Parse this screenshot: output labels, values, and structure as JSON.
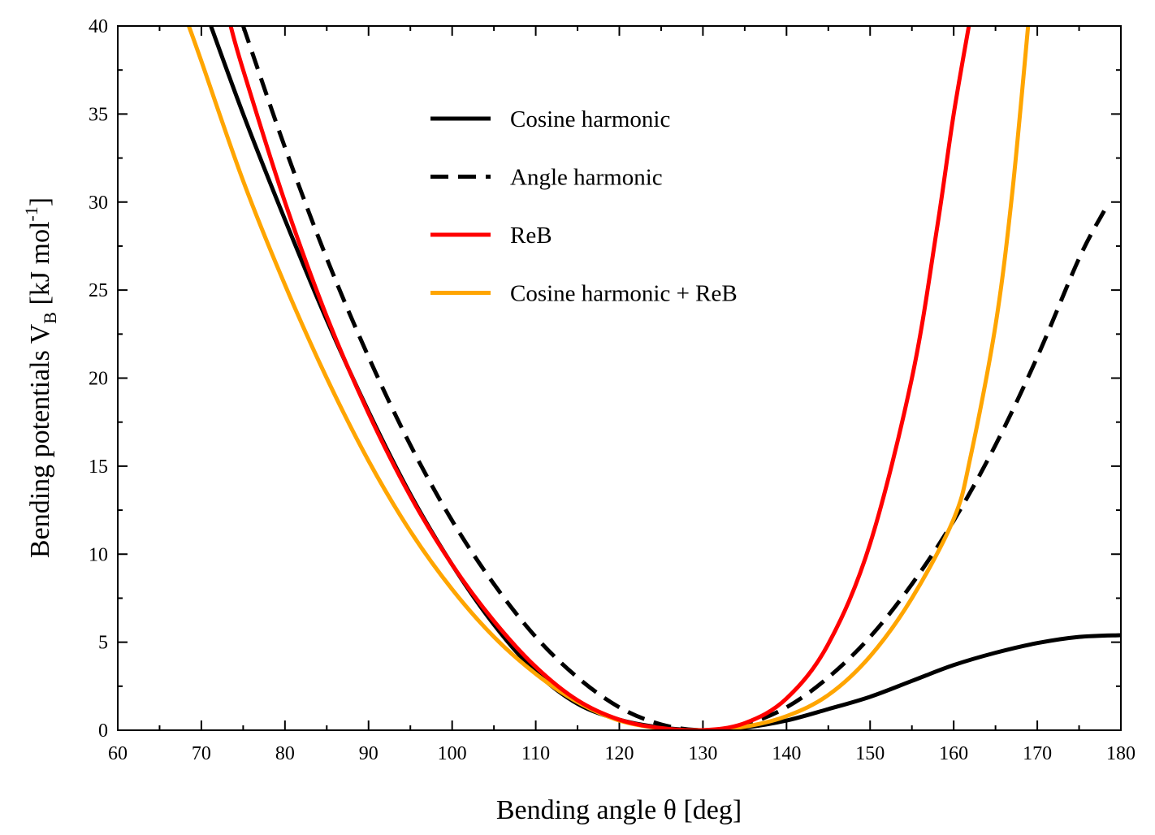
{
  "chart_data": {
    "type": "line",
    "title": "",
    "xlabel": "Bending angle θ [deg]",
    "ylabel": {
      "main": "Bending potentials V",
      "subscript": "B",
      "units_open": " [kJ mol",
      "superscript": "-1",
      "units_close": "]"
    },
    "xlim": [
      60,
      180
    ],
    "ylim": [
      0,
      40
    ],
    "x_ticks": [
      60,
      70,
      80,
      90,
      100,
      110,
      120,
      130,
      140,
      150,
      160,
      170,
      180
    ],
    "y_ticks": [
      0,
      5,
      10,
      15,
      20,
      25,
      30,
      35,
      40
    ],
    "grid": false,
    "legend_position": "top-center",
    "series": [
      {
        "name": "Cosine harmonic",
        "color": "#000000",
        "style": "solid",
        "x": [
          70,
          75,
          80,
          85,
          90,
          95,
          100,
          105,
          110,
          115,
          120,
          125,
          130,
          135,
          140,
          145,
          150,
          155,
          160,
          165,
          170,
          175,
          180
        ],
        "y": [
          41.5,
          35.0,
          29.0,
          23.3,
          18.1,
          13.4,
          9.4,
          6.0,
          3.3,
          1.5,
          0.6,
          0.15,
          0.0,
          0.15,
          0.55,
          1.2,
          1.9,
          2.8,
          3.7,
          4.4,
          4.95,
          5.3,
          5.4
        ]
      },
      {
        "name": "Angle harmonic",
        "color": "#000000",
        "style": "dashed",
        "x": [
          75,
          80,
          85,
          90,
          95,
          100,
          105,
          110,
          115,
          120,
          125,
          130,
          135,
          140,
          145,
          150,
          155,
          160,
          165,
          170,
          175,
          178
        ],
        "y": [
          40.0,
          33.1,
          26.8,
          21.2,
          16.2,
          11.9,
          8.3,
          5.3,
          3.0,
          1.3,
          0.33,
          0.0,
          0.33,
          1.3,
          3.0,
          5.3,
          8.3,
          11.9,
          16.2,
          21.2,
          26.8,
          29.5
        ]
      },
      {
        "name": "ReB",
        "color": "#ff0000",
        "style": "solid",
        "x": [
          73.5,
          75,
          80,
          85,
          90,
          95,
          100,
          105,
          110,
          115,
          120,
          125,
          130,
          135,
          140,
          145,
          150,
          155,
          158,
          160,
          162
        ],
        "y": [
          40.0,
          37.5,
          30.0,
          23.5,
          18.0,
          13.3,
          9.4,
          6.2,
          3.6,
          1.7,
          0.6,
          0.12,
          0.0,
          0.4,
          1.8,
          4.9,
          10.6,
          20.0,
          28.5,
          35.0,
          40.5
        ]
      },
      {
        "name": "Cosine harmonic + ReB",
        "color": "#ffa500",
        "style": "solid",
        "x": [
          68.5,
          70,
          75,
          80,
          85,
          90,
          95,
          100,
          105,
          110,
          115,
          120,
          125,
          130,
          135,
          140,
          145,
          150,
          155,
          160,
          162,
          165,
          167,
          169
        ],
        "y": [
          40.0,
          38.0,
          31.2,
          25.3,
          20.0,
          15.3,
          11.3,
          8.0,
          5.3,
          3.2,
          1.6,
          0.55,
          0.1,
          0.0,
          0.2,
          0.8,
          2.0,
          4.2,
          7.5,
          12.0,
          15.5,
          23.0,
          30.5,
          40.5
        ]
      }
    ]
  }
}
